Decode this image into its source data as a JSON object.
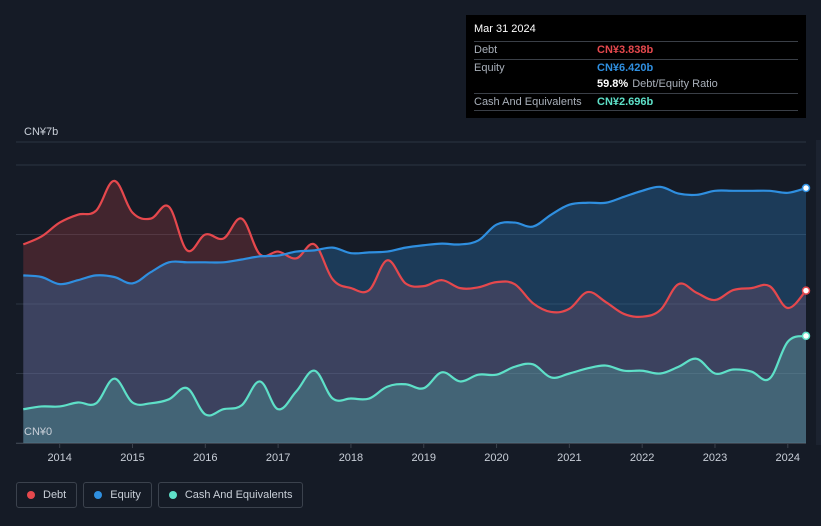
{
  "chart_data": {
    "type": "area",
    "currency": "CN¥",
    "y_top_label": "CN¥7b",
    "y_bottom_label": "CN¥0",
    "ylim": [
      0,
      7
    ],
    "xlim": [
      2013.4,
      2024.25
    ],
    "x_ticks": [
      "2014",
      "2015",
      "2016",
      "2017",
      "2018",
      "2019",
      "2020",
      "2021",
      "2022",
      "2023",
      "2024"
    ],
    "x": [
      2013.5,
      2013.75,
      2014.0,
      2014.25,
      2014.5,
      2014.75,
      2015.0,
      2015.25,
      2015.5,
      2015.75,
      2016.0,
      2016.25,
      2016.5,
      2016.75,
      2017.0,
      2017.25,
      2017.5,
      2017.75,
      2018.0,
      2018.25,
      2018.5,
      2018.75,
      2019.0,
      2019.25,
      2019.5,
      2019.75,
      2020.0,
      2020.25,
      2020.5,
      2020.75,
      2021.0,
      2021.25,
      2021.5,
      2021.75,
      2022.0,
      2022.25,
      2022.5,
      2022.75,
      2023.0,
      2023.25,
      2023.5,
      2023.75,
      2024.0,
      2024.25
    ],
    "series": [
      {
        "name": "Debt",
        "color": "#e5484d",
        "values": [
          5.0,
          5.2,
          5.55,
          5.75,
          5.85,
          6.6,
          5.8,
          5.65,
          5.95,
          4.85,
          5.25,
          5.15,
          5.65,
          4.75,
          4.82,
          4.65,
          5.0,
          4.12,
          3.9,
          3.85,
          4.6,
          4.02,
          3.95,
          4.1,
          3.9,
          3.92,
          4.05,
          4.0,
          3.52,
          3.3,
          3.38,
          3.8,
          3.55,
          3.25,
          3.18,
          3.35,
          4.0,
          3.78,
          3.6,
          3.85,
          3.9,
          3.95,
          3.4,
          3.838
        ]
      },
      {
        "name": "Equity",
        "color": "#2f8fe0",
        "values": [
          4.22,
          4.18,
          4.0,
          4.1,
          4.22,
          4.18,
          4.02,
          4.3,
          4.55,
          4.55,
          4.55,
          4.55,
          4.62,
          4.7,
          4.72,
          4.82,
          4.85,
          4.92,
          4.78,
          4.8,
          4.82,
          4.92,
          4.98,
          5.02,
          5.0,
          5.1,
          5.5,
          5.55,
          5.45,
          5.75,
          6.0,
          6.05,
          6.05,
          6.2,
          6.35,
          6.45,
          6.28,
          6.25,
          6.35,
          6.35,
          6.35,
          6.35,
          6.3,
          6.42
        ]
      },
      {
        "name": "Cash And Equivalents",
        "color": "#5ee0c8",
        "values": [
          0.85,
          0.92,
          0.92,
          1.02,
          1.0,
          1.62,
          1.02,
          1.0,
          1.1,
          1.38,
          0.72,
          0.85,
          0.95,
          1.55,
          0.85,
          1.3,
          1.82,
          1.12,
          1.12,
          1.12,
          1.42,
          1.48,
          1.38,
          1.78,
          1.55,
          1.72,
          1.72,
          1.92,
          1.98,
          1.65,
          1.75,
          1.88,
          1.95,
          1.82,
          1.82,
          1.75,
          1.92,
          2.12,
          1.75,
          1.85,
          1.8,
          1.62,
          2.55,
          2.696
        ]
      }
    ]
  },
  "tooltip": {
    "date": "Mar 31 2024",
    "debt_label": "Debt",
    "debt_value": "CN¥3.838b",
    "equity_label": "Equity",
    "equity_value": "CN¥6.420b",
    "ratio_value": "59.8%",
    "ratio_label": "Debt/Equity Ratio",
    "cash_label": "Cash And Equivalents",
    "cash_value": "CN¥2.696b"
  },
  "legend": {
    "debt": "Debt",
    "equity": "Equity",
    "cash": "Cash And Equivalents"
  },
  "colors": {
    "background": "#151b26",
    "debt": "#e5484d",
    "equity": "#2f8fe0",
    "cash": "#5ee0c8"
  }
}
